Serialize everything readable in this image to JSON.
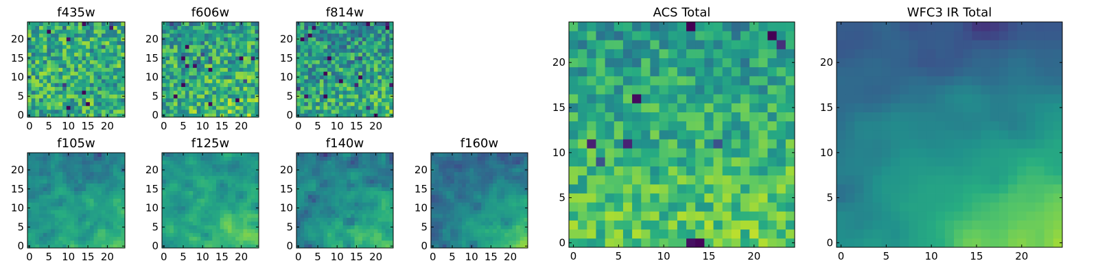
{
  "chart_data": [
    {
      "type": "heatmap",
      "title": "f435w",
      "grid_size": 25,
      "xticks": [
        0,
        5,
        10,
        15,
        20
      ],
      "yticks": [
        0,
        5,
        10,
        15,
        20
      ],
      "xlim": [
        -0.5,
        24.5
      ],
      "ylim": [
        -0.5,
        24.5
      ],
      "colormap": "viridis",
      "seed": 11,
      "gradient": {
        "mean": 0.62,
        "noise": 0.25,
        "bl": 0.0,
        "br": 0.0,
        "tl": 0.0,
        "tr": 0.0,
        "smooth": 0
      }
    },
    {
      "type": "heatmap",
      "title": "f606w",
      "grid_size": 25,
      "xticks": [
        0,
        5,
        10,
        15,
        20
      ],
      "yticks": [
        0,
        5,
        10,
        15,
        20
      ],
      "xlim": [
        -0.5,
        24.5
      ],
      "ylim": [
        -0.5,
        24.5
      ],
      "colormap": "viridis",
      "seed": 23,
      "gradient": {
        "mean": 0.6,
        "noise": 0.25,
        "bl": 0.05,
        "br": 0.12,
        "tl": -0.05,
        "tr": -0.05,
        "smooth": 0
      }
    },
    {
      "type": "heatmap",
      "title": "f814w",
      "grid_size": 25,
      "xticks": [
        0,
        5,
        10,
        15,
        20
      ],
      "yticks": [
        0,
        5,
        10,
        15,
        20
      ],
      "xlim": [
        -0.5,
        24.5
      ],
      "ylim": [
        -0.5,
        24.5
      ],
      "colormap": "viridis",
      "seed": 37,
      "gradient": {
        "mean": 0.55,
        "noise": 0.24,
        "bl": 0.05,
        "br": 0.15,
        "tl": -0.05,
        "tr": -0.08,
        "smooth": 0
      }
    },
    {
      "type": "heatmap",
      "title": "f105w",
      "grid_size": 25,
      "xticks": [
        0,
        5,
        10,
        15,
        20
      ],
      "yticks": [
        0,
        5,
        10,
        15,
        20
      ],
      "xlim": [
        -0.5,
        24.5
      ],
      "ylim": [
        -0.5,
        24.5
      ],
      "colormap": "viridis",
      "seed": 41,
      "gradient": {
        "mean": 0.55,
        "noise": 0.22,
        "bl": 0.0,
        "br": 0.18,
        "tl": -0.1,
        "tr": -0.12,
        "smooth": 1
      }
    },
    {
      "type": "heatmap",
      "title": "f125w",
      "grid_size": 25,
      "xticks": [
        0,
        5,
        10,
        15,
        20
      ],
      "yticks": [
        0,
        5,
        10,
        15,
        20
      ],
      "xlim": [
        -0.5,
        24.5
      ],
      "ylim": [
        -0.5,
        24.5
      ],
      "colormap": "viridis",
      "seed": 53,
      "gradient": {
        "mean": 0.6,
        "noise": 0.22,
        "bl": -0.05,
        "br": 0.2,
        "tl": -0.05,
        "tr": -0.1,
        "smooth": 1
      }
    },
    {
      "type": "heatmap",
      "title": "f140w",
      "grid_size": 25,
      "xticks": [
        0,
        5,
        10,
        15,
        20
      ],
      "yticks": [
        0,
        5,
        10,
        15,
        20
      ],
      "xlim": [
        -0.5,
        24.5
      ],
      "ylim": [
        -0.5,
        24.5
      ],
      "colormap": "viridis",
      "seed": 67,
      "gradient": {
        "mean": 0.55,
        "noise": 0.2,
        "bl": -0.05,
        "br": 0.22,
        "tl": -0.1,
        "tr": -0.15,
        "smooth": 1
      }
    },
    {
      "type": "heatmap",
      "title": "f160w",
      "grid_size": 25,
      "xticks": [
        0,
        5,
        10,
        15,
        20
      ],
      "yticks": [
        0,
        5,
        10,
        15,
        20
      ],
      "xlim": [
        -0.5,
        24.5
      ],
      "ylim": [
        -0.5,
        24.5
      ],
      "colormap": "viridis",
      "seed": 79,
      "gradient": {
        "mean": 0.5,
        "noise": 0.2,
        "bl": -0.1,
        "br": 0.3,
        "tl": -0.15,
        "tr": -0.2,
        "smooth": 1
      }
    },
    {
      "type": "heatmap",
      "title": "ACS Total",
      "grid_size": 25,
      "xticks": [
        0,
        5,
        10,
        15,
        20
      ],
      "yticks": [
        0,
        5,
        10,
        15,
        20
      ],
      "xlim": [
        -0.5,
        24.5
      ],
      "ylim": [
        -0.5,
        24.5
      ],
      "colormap": "viridis",
      "seed": 97,
      "gradient": {
        "mean": 0.64,
        "noise": 0.18,
        "bl": 0.08,
        "br": 0.12,
        "tl": -0.1,
        "tr": -0.12,
        "smooth": 0
      }
    },
    {
      "type": "heatmap",
      "title": "WFC3 IR Total",
      "grid_size": 25,
      "xticks": [
        0,
        5,
        10,
        15,
        20
      ],
      "yticks": [
        0,
        5,
        10,
        15,
        20
      ],
      "xlim": [
        -0.5,
        24.5
      ],
      "ylim": [
        -0.5,
        24.5
      ],
      "colormap": "viridis",
      "seed": 113,
      "gradient": {
        "mean": 0.5,
        "noise": 0.14,
        "bl": 0.02,
        "br": 0.38,
        "tl": -0.22,
        "tr": -0.25,
        "smooth": 2
      }
    }
  ]
}
